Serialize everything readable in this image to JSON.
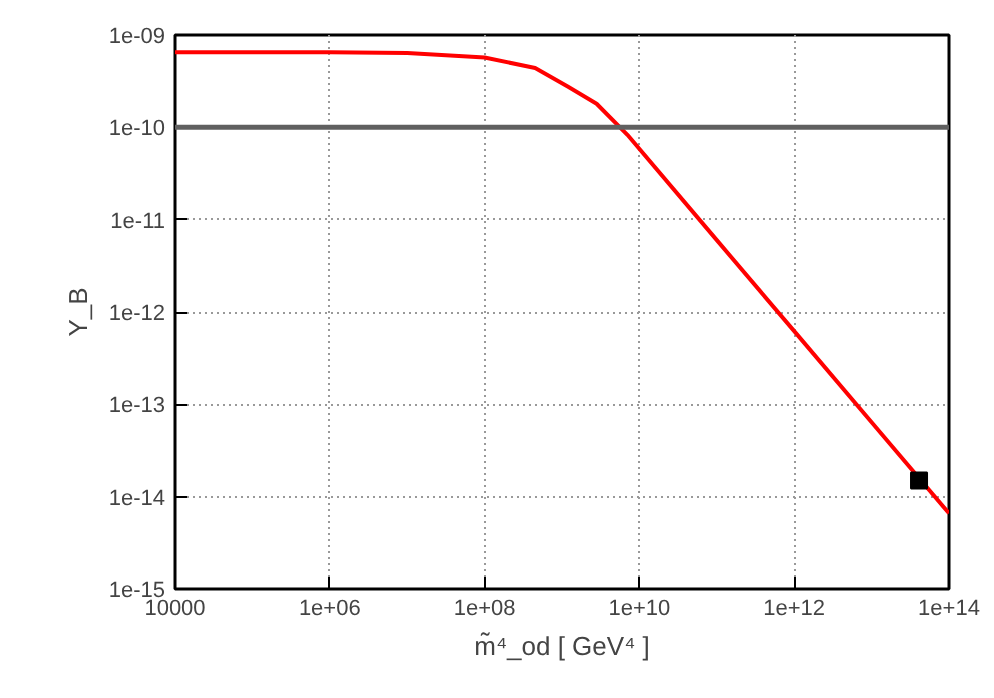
{
  "chart_data": {
    "type": "line",
    "xlabel": "m̃⁴_od [ GeV⁴ ]",
    "ylabel": "Y_B",
    "log": "xy",
    "grid": true,
    "xlim": [
      10000,
      100000000000000.0
    ],
    "ylim": [
      1e-15,
      1e-09
    ],
    "xticks": [
      10000,
      {
        "value": 1000000.0,
        "label": "1e+06"
      },
      {
        "value": 100000000.0,
        "label": "1e+08"
      },
      {
        "value": 10000000000.0,
        "label": "1e+10"
      },
      {
        "value": 1000000000000.0,
        "label": "1e+12"
      },
      {
        "value": 100000000000000.0,
        "label": "1e+14"
      }
    ],
    "yticks": [
      {
        "value": 1e-15,
        "label": "1e-15"
      },
      {
        "value": 1e-14,
        "label": "1e-14"
      },
      {
        "value": 1e-13,
        "label": "1e-13"
      },
      {
        "value": 1e-12,
        "label": "1e-12"
      },
      {
        "value": 1e-11,
        "label": "1e-11"
      },
      {
        "value": 1e-10,
        "label": "1e-10"
      },
      {
        "value": 1e-09,
        "label": "1e-09"
      }
    ],
    "ref_lines": [
      {
        "axis": "y",
        "value": 1e-10,
        "color": "#606060"
      }
    ],
    "series": [
      {
        "color": "#ff0000",
        "marker": "none",
        "x": [
          10000,
          100000.0,
          1000000.0,
          10000000.0,
          100000000.0,
          450000000.0,
          1200000000.0,
          2800000000.0,
          7000000000.0,
          100000000000.0,
          1000000000000.0,
          10000000000000.0,
          100000000000000.0
        ],
        "values": [
          6.5e-10,
          6.5e-10,
          6.5e-10,
          6.4e-10,
          5.7e-10,
          4.4e-10,
          2.75e-10,
          1.8e-10,
          8.3e-11,
          6e-12,
          6.2e-13,
          6.4e-14,
          6.6e-15
        ]
      },
      {
        "type": "scatter",
        "color": "#000000",
        "marker": "square",
        "x": [
          41000000000000.0
        ],
        "values": [
          1.5e-14
        ]
      }
    ]
  }
}
